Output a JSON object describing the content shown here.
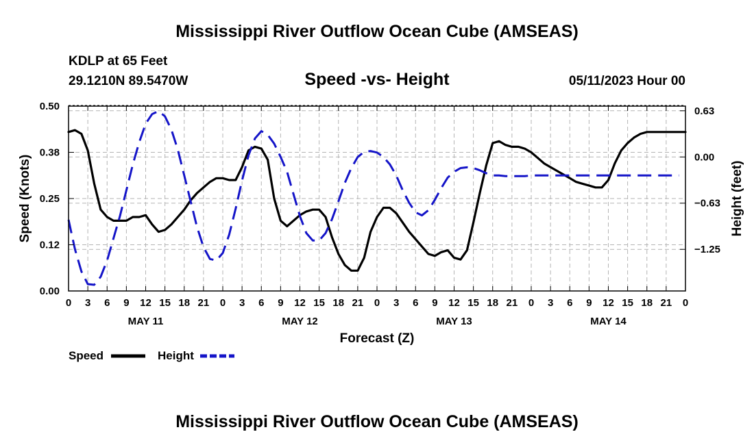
{
  "colors": {
    "speed": "#000000",
    "height": "#1414c8",
    "grid": "#b4b4b4",
    "background": "#ffffff"
  },
  "chart_data": {
    "type": "line",
    "title": "Mississippi River Outflow Ocean Cube (AMSEAS)",
    "station": "KDLP at 65 Feet",
    "coords": "29.1210N  89.5470W",
    "subtitle": "Speed -vs- Height",
    "date": "05/11/2023 Hour 00",
    "xlabel": "Forecast (Z)",
    "ylabel_left": "Speed (Knots)",
    "ylabel_right": "Height (feet)",
    "x_range_hours": [
      0,
      96
    ],
    "x_tick_labels": [
      "0",
      "3",
      "6",
      "9",
      "12",
      "15",
      "18",
      "21",
      "0",
      "3",
      "6",
      "9",
      "12",
      "15",
      "18",
      "21",
      "0",
      "3",
      "6",
      "9",
      "12",
      "15",
      "18",
      "21",
      "0",
      "3",
      "6",
      "9",
      "12",
      "15",
      "18",
      "21",
      "0"
    ],
    "day_labels": [
      {
        "hour": 12,
        "label": "MAY 11"
      },
      {
        "hour": 36,
        "label": "MAY 12"
      },
      {
        "hour": 60,
        "label": "MAY 13"
      },
      {
        "hour": 84,
        "label": "MAY 14"
      }
    ],
    "y_left": {
      "range": [
        0,
        0.5
      ],
      "ticks": [
        0.0,
        0.125,
        0.25,
        0.375,
        0.5
      ],
      "tick_labels": [
        "0.00",
        "0.12",
        "0.25",
        "0.38",
        "0.50"
      ]
    },
    "y_right": {
      "range": [
        -1.813,
        0.688
      ],
      "ticks": [
        -1.25,
        -0.625,
        0.0,
        0.625
      ],
      "tick_labels": [
        "−1.25",
        "−0.63",
        "0.00",
        "0.63"
      ]
    },
    "legend": [
      {
        "name": "Speed",
        "style": "solid"
      },
      {
        "name": "Height",
        "style": "dashed"
      }
    ],
    "series": [
      {
        "name": "Speed",
        "axis": "left",
        "style": "solid",
        "x": [
          0,
          1,
          2,
          3,
          4,
          5,
          6,
          7,
          8,
          9,
          10,
          11,
          12,
          13,
          14,
          15,
          16,
          17,
          18,
          19,
          20,
          21,
          22,
          23,
          24,
          25,
          26,
          27,
          28,
          29,
          30,
          31,
          32,
          33,
          34,
          35,
          36,
          37,
          38,
          39,
          40,
          41,
          42,
          43,
          44,
          45,
          46,
          47,
          48,
          49,
          50,
          51,
          52,
          53,
          54,
          55,
          56,
          57,
          58,
          59,
          60,
          61,
          62,
          63,
          64,
          65,
          66,
          67,
          68,
          69,
          70,
          71,
          72,
          73,
          74,
          75,
          76,
          77,
          78,
          79,
          80,
          81,
          82,
          83,
          84,
          85,
          86,
          87,
          88,
          89,
          90,
          91,
          92,
          93,
          94,
          95,
          96
        ],
        "values": [
          0.43,
          0.435,
          0.425,
          0.38,
          0.29,
          0.22,
          0.2,
          0.19,
          0.19,
          0.19,
          0.2,
          0.2,
          0.205,
          0.18,
          0.16,
          0.165,
          0.18,
          0.2,
          0.22,
          0.245,
          0.265,
          0.28,
          0.295,
          0.305,
          0.305,
          0.3,
          0.3,
          0.335,
          0.38,
          0.39,
          0.385,
          0.355,
          0.25,
          0.19,
          0.175,
          0.19,
          0.205,
          0.215,
          0.22,
          0.22,
          0.2,
          0.145,
          0.1,
          0.07,
          0.055,
          0.055,
          0.09,
          0.16,
          0.2,
          0.225,
          0.225,
          0.21,
          0.185,
          0.16,
          0.14,
          0.12,
          0.1,
          0.095,
          0.105,
          0.11,
          0.09,
          0.085,
          0.11,
          0.185,
          0.265,
          0.34,
          0.4,
          0.405,
          0.395,
          0.39,
          0.39,
          0.385,
          0.375,
          0.36,
          0.345,
          0.335,
          0.325,
          0.315,
          0.305,
          0.295,
          0.29,
          0.285,
          0.28,
          0.28,
          0.3,
          0.345,
          0.38,
          0.4,
          0.415,
          0.425,
          0.43,
          0.43,
          0.43,
          0.43,
          0.43,
          0.43,
          0.43
        ]
      },
      {
        "name": "Height",
        "axis": "right",
        "style": "dashed",
        "x": [
          0,
          1,
          2,
          3,
          4,
          5,
          6,
          7,
          8,
          9,
          10,
          11,
          12,
          13,
          14,
          15,
          16,
          17,
          18,
          19,
          20,
          21,
          22,
          23,
          24,
          25,
          26,
          27,
          28,
          29,
          30,
          31,
          32,
          33,
          34,
          35,
          36,
          37,
          38,
          39,
          40,
          41,
          42,
          43,
          44,
          45,
          46,
          47,
          48,
          49,
          50,
          51,
          52,
          53,
          54,
          55,
          56,
          57,
          58,
          59,
          60,
          61,
          62,
          63,
          64,
          65,
          66,
          67,
          68,
          69,
          70,
          71,
          72,
          73,
          74,
          75,
          76,
          77,
          78,
          79,
          80,
          81,
          82,
          83,
          84,
          85,
          86,
          87,
          88,
          89,
          90,
          91,
          92,
          93,
          94,
          95
        ],
        "values": [
          -0.85,
          -1.25,
          -1.55,
          -1.72,
          -1.73,
          -1.62,
          -1.4,
          -1.1,
          -0.8,
          -0.45,
          -0.1,
          0.2,
          0.45,
          0.58,
          0.62,
          0.55,
          0.37,
          0.1,
          -0.25,
          -0.6,
          -0.95,
          -1.22,
          -1.38,
          -1.4,
          -1.3,
          -1.05,
          -0.7,
          -0.32,
          0.02,
          0.25,
          0.35,
          0.3,
          0.18,
          0.0,
          -0.2,
          -0.5,
          -0.8,
          -1.03,
          -1.13,
          -1.13,
          -1.03,
          -0.84,
          -0.6,
          -0.35,
          -0.15,
          0.0,
          0.07,
          0.08,
          0.06,
          0.0,
          -0.1,
          -0.25,
          -0.45,
          -0.62,
          -0.75,
          -0.79,
          -0.72,
          -0.58,
          -0.42,
          -0.28,
          -0.2,
          -0.15,
          -0.14,
          -0.15,
          -0.18,
          -0.22,
          -0.25,
          -0.25,
          -0.26,
          -0.26,
          -0.26,
          -0.26,
          -0.25,
          -0.25,
          -0.25,
          -0.25,
          -0.25,
          -0.25,
          -0.25,
          -0.25,
          -0.25,
          -0.25,
          -0.25,
          -0.25,
          -0.25,
          -0.25,
          -0.25,
          -0.25,
          -0.25,
          -0.25,
          -0.25,
          -0.25,
          -0.25,
          -0.25,
          -0.25,
          -0.25
        ]
      }
    ]
  },
  "footer_title": "Mississippi River Outflow Ocean Cube (AMSEAS)"
}
